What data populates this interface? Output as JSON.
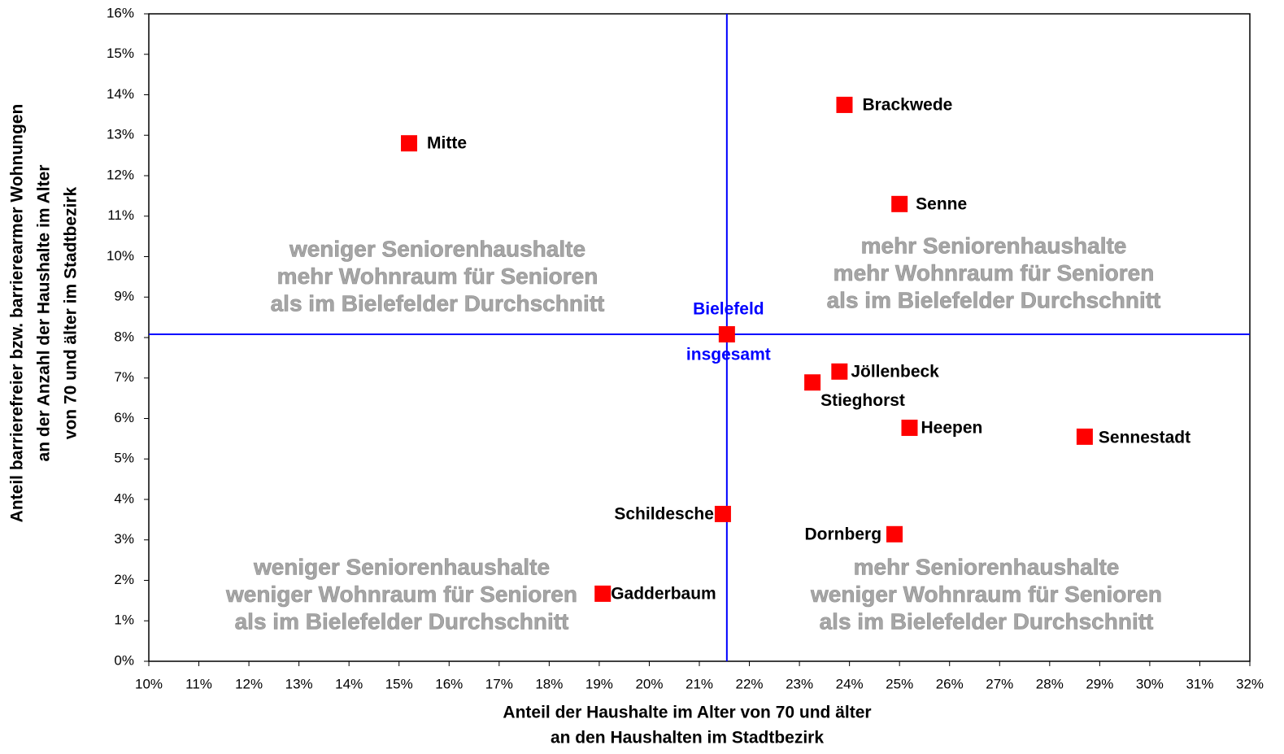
{
  "chart_data": {
    "type": "scatter",
    "x_label": [
      "Anteil der Haushalte im Alter von 70 und älter",
      "an den Haushalten im Stadtbezirk"
    ],
    "y_label": [
      "Anteil barrierefreier bzw. barrierearmer Wohnungen",
      "an der Anzahl der Haushalte im Alter",
      "von 70 und älter im Stadtbezirk"
    ],
    "xlim": [
      10,
      32
    ],
    "ylim": [
      0,
      16
    ],
    "xticks": [
      {
        "value": 10,
        "label": "10%"
      },
      {
        "value": 11,
        "label": "11%"
      },
      {
        "value": 12,
        "label": "12%"
      },
      {
        "value": 13,
        "label": "13%"
      },
      {
        "value": 14,
        "label": "14%"
      },
      {
        "value": 15,
        "label": "15%"
      },
      {
        "value": 16,
        "label": "16%"
      },
      {
        "value": 17,
        "label": "17%"
      },
      {
        "value": 18,
        "label": "18%"
      },
      {
        "value": 19,
        "label": "19%"
      },
      {
        "value": 20,
        "label": "20%"
      },
      {
        "value": 21,
        "label": "21%"
      },
      {
        "value": 22,
        "label": "22%"
      },
      {
        "value": 23,
        "label": "23%"
      },
      {
        "value": 24,
        "label": "24%"
      },
      {
        "value": 25,
        "label": "25%"
      },
      {
        "value": 26,
        "label": "26%"
      },
      {
        "value": 27,
        "label": "27%"
      },
      {
        "value": 28,
        "label": "28%"
      },
      {
        "value": 29,
        "label": "29%"
      },
      {
        "value": 30,
        "label": "30%"
      },
      {
        "value": 31,
        "label": "31%"
      },
      {
        "value": 32,
        "label": "32%"
      }
    ],
    "yticks": [
      {
        "value": 0,
        "label": "0%"
      },
      {
        "value": 1,
        "label": "1%"
      },
      {
        "value": 2,
        "label": "2%"
      },
      {
        "value": 3,
        "label": "3%"
      },
      {
        "value": 4,
        "label": "4%"
      },
      {
        "value": 5,
        "label": "5%"
      },
      {
        "value": 6,
        "label": "6%"
      },
      {
        "value": 7,
        "label": "7%"
      },
      {
        "value": 8,
        "label": "8%"
      },
      {
        "value": 9,
        "label": "9%"
      },
      {
        "value": 10,
        "label": "10%"
      },
      {
        "value": 11,
        "label": "11%"
      },
      {
        "value": 12,
        "label": "12%"
      },
      {
        "value": 13,
        "label": "13%"
      },
      {
        "value": 14,
        "label": "14%"
      },
      {
        "value": 15,
        "label": "15%"
      },
      {
        "value": 16,
        "label": "16%"
      }
    ],
    "color": "#ff0000",
    "points": [
      {
        "label": "Mitte",
        "x": 15.2,
        "y": 12.8
      },
      {
        "label": "Brackwede",
        "x": 23.9,
        "y": 13.75
      },
      {
        "label": "Senne",
        "x": 25.0,
        "y": 11.3
      },
      {
        "label": "Jöllenbeck",
        "x": 23.8,
        "y": 7.16
      },
      {
        "label": "Stieghorst",
        "x": 23.26,
        "y": 6.89
      },
      {
        "label": "Heepen",
        "x": 25.2,
        "y": 5.77
      },
      {
        "label": "Sennestadt",
        "x": 28.7,
        "y": 5.55
      },
      {
        "label": "Schildesche",
        "x": 21.47,
        "y": 3.64
      },
      {
        "label": "Dornberg",
        "x": 24.9,
        "y": 3.14
      },
      {
        "label": "Gadderbaum",
        "x": 19.07,
        "y": 1.67
      }
    ],
    "reference": {
      "label": [
        "Bielefeld",
        "insgesamt"
      ],
      "x": 21.55,
      "y": 8.08,
      "color": "#0000ff"
    },
    "annotations": [
      [
        "weniger Seniorenhaushalte",
        "mehr Wohnraum für Senioren",
        "als im Bielefelder Durchschnitt"
      ],
      [
        "mehr Seniorenhaushalte",
        "mehr Wohnraum für Senioren",
        "als im Bielefelder Durchschnitt"
      ],
      [
        "weniger Seniorenhaushalte",
        "weniger Wohnraum für Senioren",
        "als im Bielefelder Durchschnitt"
      ],
      [
        "mehr Seniorenhaushalte",
        "weniger Wohnraum für Senioren",
        "als im Bielefelder Durchschnitt"
      ]
    ]
  }
}
